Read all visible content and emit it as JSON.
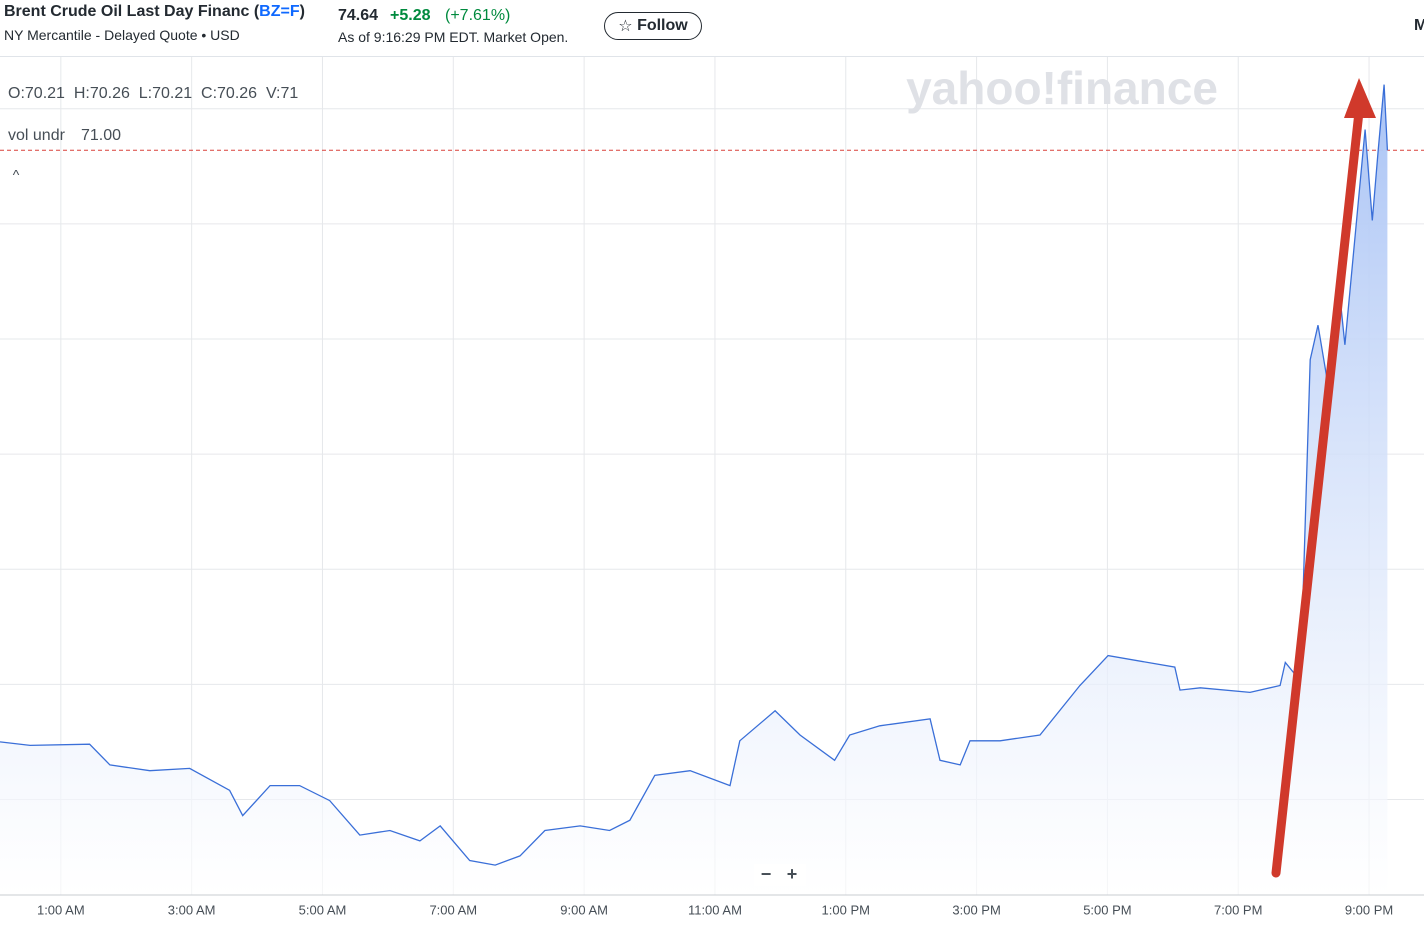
{
  "header": {
    "title": "Brent Crude Oil Last Day Financ",
    "symbol_open": "(",
    "symbol": "BZ=F",
    "symbol_close": ")",
    "subtitle": "NY Mercantile - Delayed Quote • USD",
    "price": "74.64",
    "change": "+5.28",
    "change_percent": "(+7.61%)",
    "as_of": "As of 9:16:29 PM EDT. Market Open.",
    "follow_button": "Follow",
    "cut_off_text": "M"
  },
  "chart_data": {
    "type": "line",
    "watermark": "yahoo!finance",
    "ohlc_text": "O:70.21  H:70.26  L:70.21  C:70.26  V:71",
    "indicator_name": "vol undr",
    "indicator_value": "71.00",
    "collapse_icon": "^",
    "zoom_out": "−",
    "zoom_in": "+",
    "x": [
      0.07,
      0.53,
      1.44,
      1.75,
      2.36,
      2.97,
      3.58,
      3.78,
      4.2,
      4.65,
      5.11,
      5.57,
      6.03,
      6.49,
      6.8,
      7.25,
      7.64,
      8.02,
      8.4,
      8.94,
      9.39,
      9.7,
      10.08,
      10.62,
      11.23,
      11.38,
      11.92,
      12.3,
      12.83,
      13.06,
      13.52,
      14.29,
      14.44,
      14.75,
      14.9,
      15.36,
      15.97,
      16.58,
      17.01,
      18.03,
      18.11,
      18.42,
      19.18,
      19.64,
      19.72,
      19.95,
      20.1,
      20.22,
      20.4,
      20.56,
      20.63,
      20.94,
      21.05,
      21.14,
      21.23,
      21.28
    ],
    "series": [
      {
        "name": "BZ=F",
        "color": "#3a6fd8",
        "values": [
          69.5,
          69.47,
          69.48,
          69.3,
          69.25,
          69.27,
          69.08,
          68.86,
          69.12,
          69.12,
          68.99,
          68.69,
          68.73,
          68.64,
          68.77,
          68.47,
          68.43,
          68.51,
          68.73,
          68.77,
          68.73,
          68.82,
          69.21,
          69.25,
          69.12,
          69.51,
          69.77,
          69.56,
          69.34,
          69.56,
          69.64,
          69.7,
          69.34,
          69.3,
          69.51,
          69.51,
          69.56,
          69.99,
          70.25,
          70.15,
          69.95,
          69.97,
          69.93,
          69.99,
          70.19,
          70.03,
          72.82,
          73.12,
          72.51,
          73.34,
          72.95,
          74.82,
          74.03,
          74.64,
          75.21,
          74.64
        ]
      }
    ],
    "xlim": [
      0.07,
      21.84
    ],
    "ylim": [
      68.17,
      75.45
    ],
    "xticks": [
      {
        "value": 1,
        "label": "1:00 AM"
      },
      {
        "value": 3,
        "label": "3:00 AM"
      },
      {
        "value": 5,
        "label": "5:00 AM"
      },
      {
        "value": 7,
        "label": "7:00 AM"
      },
      {
        "value": 9,
        "label": "9:00 AM"
      },
      {
        "value": 11,
        "label": "11:00 AM"
      },
      {
        "value": 13,
        "label": "1:00 PM"
      },
      {
        "value": 15,
        "label": "3:00 PM"
      },
      {
        "value": 17,
        "label": "5:00 PM"
      },
      {
        "value": 19,
        "label": "7:00 PM"
      },
      {
        "value": 21,
        "label": "9:00 PM"
      }
    ],
    "y_gridlines": [
      69,
      70,
      71,
      72,
      73,
      74,
      75
    ],
    "last_price_line": 74.64,
    "last_price_line_color": "#d9403a",
    "grid": true,
    "area_fill": true
  }
}
